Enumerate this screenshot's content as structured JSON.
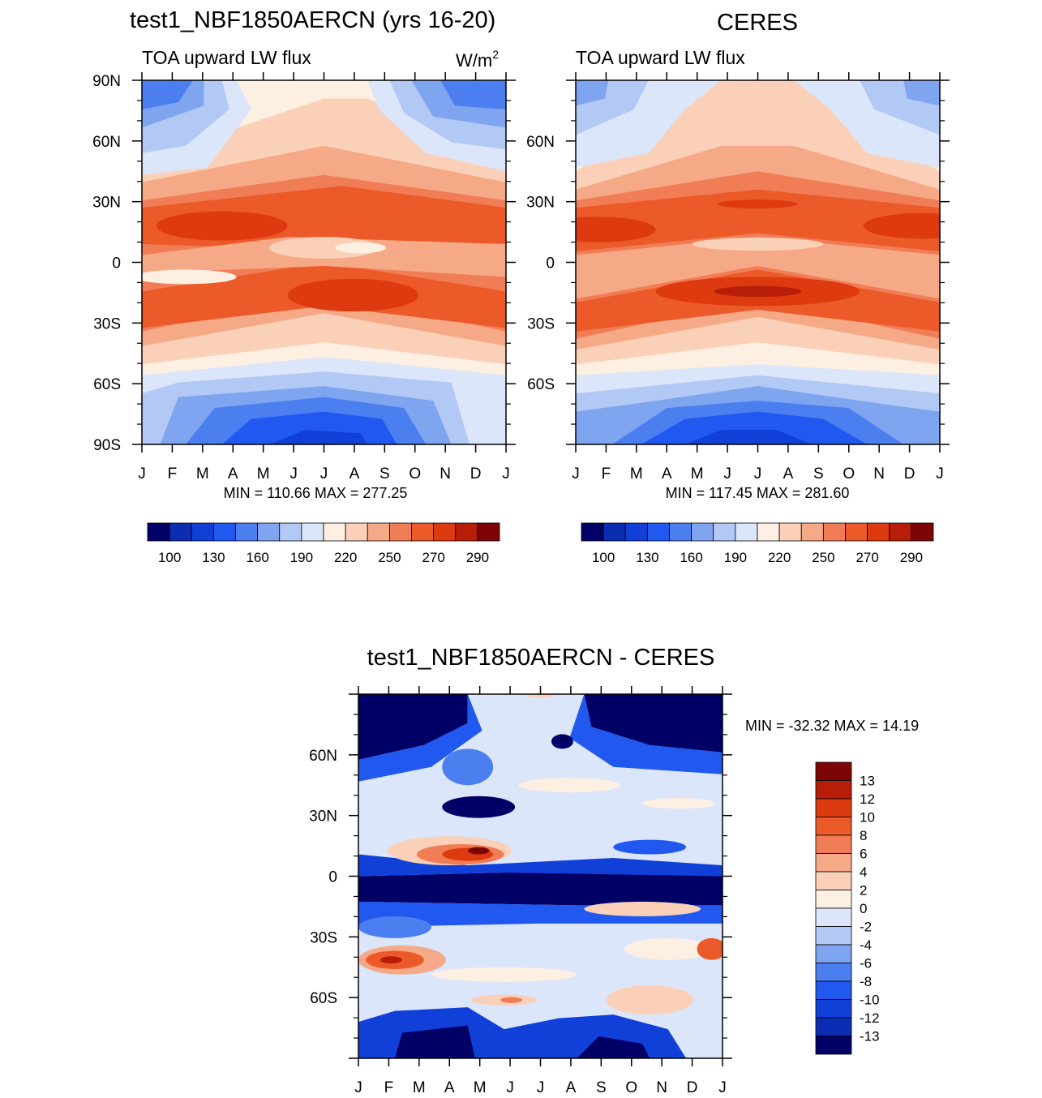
{
  "panels": {
    "model": {
      "title": "test1_NBF1850AERCN (yrs 16-20)",
      "subtitle": "TOA upward LW flux",
      "units_prefix": "W/m",
      "units_exponent": "2",
      "minmax": "MIN = 110.66 MAX = 277.25"
    },
    "obs": {
      "title": "CERES",
      "subtitle": "TOA upward LW flux",
      "minmax": "MIN = 117.45 MAX = 281.60"
    },
    "diff": {
      "title": "test1_NBF1850AERCN - CERES",
      "minmax": "MIN = -32.32 MAX =  14.19"
    }
  },
  "colors": {
    "flux_palette": [
      "#000066",
      "#0a2db2",
      "#1140d8",
      "#2058f0",
      "#4b7ff0",
      "#7fa4f0",
      "#b2c9f5",
      "#dbe6fa",
      "#fdefe1",
      "#fbd0b8",
      "#f6a987",
      "#f17d56",
      "#eb5a28",
      "#dd3a10",
      "#b71d08",
      "#7d0505"
    ],
    "diff_palette": [
      "#000066",
      "#0a2db2",
      "#1140d8",
      "#2058f0",
      "#4b7ff0",
      "#7fa4f0",
      "#b2c9f5",
      "#dbe6fa",
      "#fdefe1",
      "#fbd0b8",
      "#f6a987",
      "#f17d56",
      "#eb5a28",
      "#dd3a10",
      "#b71d08",
      "#7d0505"
    ]
  },
  "chart_data": [
    {
      "id": "model",
      "type": "heatmap",
      "title": "test1_NBF1850AERCN (yrs 16-20)",
      "subtitle": "TOA upward LW flux",
      "units": "W/m2",
      "x": [
        "J",
        "F",
        "M",
        "A",
        "M",
        "J",
        "J",
        "A",
        "S",
        "O",
        "N",
        "D",
        "J"
      ],
      "y_ticks": [
        "90N",
        "60N",
        "30N",
        "0",
        "30S",
        "60S",
        "90S"
      ],
      "ylim": [
        -90,
        90
      ],
      "colorbar_levels": [
        100,
        115,
        130,
        145,
        160,
        175,
        190,
        205,
        220,
        235,
        250,
        260,
        270,
        280,
        290
      ],
      "colorbar_labels": [
        "100",
        "130",
        "160",
        "190",
        "220",
        "250",
        "270",
        "290"
      ],
      "min": 110.66,
      "max": 277.25
    },
    {
      "id": "obs",
      "type": "heatmap",
      "title": "CERES",
      "subtitle": "TOA upward LW flux",
      "units": "W/m2",
      "x": [
        "J",
        "F",
        "M",
        "A",
        "M",
        "J",
        "J",
        "A",
        "S",
        "O",
        "N",
        "D",
        "J"
      ],
      "y_ticks": [
        "60N",
        "30N",
        "0",
        "30S",
        "60S"
      ],
      "ylim": [
        -90,
        90
      ],
      "colorbar_levels": [
        100,
        115,
        130,
        145,
        160,
        175,
        190,
        205,
        220,
        235,
        250,
        260,
        270,
        280,
        290
      ],
      "colorbar_labels": [
        "100",
        "130",
        "160",
        "190",
        "220",
        "250",
        "270",
        "290"
      ],
      "min": 117.45,
      "max": 281.6
    },
    {
      "id": "diff",
      "type": "heatmap",
      "title": "test1_NBF1850AERCN - CERES",
      "x": [
        "J",
        "F",
        "M",
        "A",
        "M",
        "J",
        "J",
        "A",
        "S",
        "O",
        "N",
        "D",
        "J"
      ],
      "y_ticks": [
        "60N",
        "30N",
        "0",
        "30S",
        "60S"
      ],
      "ylim": [
        -90,
        90
      ],
      "colorbar_labels": [
        "13",
        "12",
        "10",
        "8",
        "6",
        "4",
        "2",
        "0",
        "-2",
        "-4",
        "-6",
        "-8",
        "-10",
        "-12",
        "-13"
      ],
      "min": -32.32,
      "max": 14.19
    }
  ]
}
